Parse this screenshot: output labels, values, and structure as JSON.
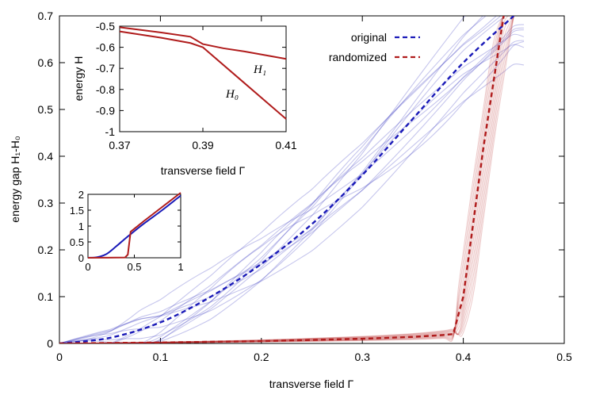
{
  "chart_data": [
    {
      "type": "line",
      "xlabel": "transverse field Γ",
      "ylabel": "energy gap H₁-H₀",
      "xlim": [
        0,
        0.5
      ],
      "ylim": [
        0,
        0.7
      ],
      "xticks": [
        0,
        0.1,
        0.2,
        0.3,
        0.4,
        0.5
      ],
      "xtick_labels": [
        "0",
        "0.1",
        "0.2",
        "0.3",
        "0.4",
        "0.5"
      ],
      "yticks": [
        0,
        0.1,
        0.2,
        0.3,
        0.4,
        0.5,
        0.6,
        0.7
      ],
      "ytick_labels": [
        "0",
        "0.1",
        "0.2",
        "0.3",
        "0.4",
        "0.5",
        "0.6",
        "0.7"
      ],
      "legend": {
        "placement": "top-right",
        "entries": [
          "original",
          "randomized"
        ]
      },
      "series": [
        {
          "name": "original",
          "color": "#1a1ab8",
          "style": "dashed",
          "x": [
            0,
            0.05,
            0.1,
            0.15,
            0.2,
            0.25,
            0.3,
            0.35,
            0.4,
            0.45
          ],
          "y": [
            0,
            0.012,
            0.045,
            0.1,
            0.17,
            0.255,
            0.36,
            0.48,
            0.6,
            0.7
          ]
        },
        {
          "name": "randomized",
          "color": "#b01c1c",
          "style": "dashed",
          "x": [
            0,
            0.1,
            0.2,
            0.3,
            0.35,
            0.38,
            0.39,
            0.4,
            0.42,
            0.44
          ],
          "y": [
            0,
            0.002,
            0.005,
            0.01,
            0.014,
            0.018,
            0.02,
            0.1,
            0.42,
            0.7
          ]
        }
      ]
    },
    {
      "type": "line",
      "xlabel": "transverse field Γ",
      "ylabel": "energy H",
      "xlim": [
        0.37,
        0.41
      ],
      "ylim": [
        -1,
        -0.5
      ],
      "xticks": [
        0.37,
        0.39,
        0.41
      ],
      "xtick_labels": [
        "0.37",
        "0.39",
        "0.41"
      ],
      "yticks": [
        -0.5,
        -0.6,
        -0.7,
        -0.8,
        -0.9,
        -1
      ],
      "ytick_labels": [
        "-0.5",
        "-0.6",
        "-0.7",
        "-0.8",
        "-0.9",
        "-1"
      ],
      "annotations": [
        "H₁",
        "H₀"
      ],
      "series": [
        {
          "name": "H₁",
          "color": "#b01c1c",
          "x": [
            0.37,
            0.38,
            0.387,
            0.39,
            0.395,
            0.4,
            0.41
          ],
          "y": [
            -0.505,
            -0.53,
            -0.55,
            -0.585,
            -0.605,
            -0.62,
            -0.655
          ]
        },
        {
          "name": "H₀",
          "color": "#b01c1c",
          "x": [
            0.37,
            0.38,
            0.387,
            0.39,
            0.4,
            0.41
          ],
          "y": [
            -0.525,
            -0.555,
            -0.58,
            -0.6,
            -0.77,
            -0.94
          ]
        }
      ]
    },
    {
      "type": "line",
      "xlim": [
        0,
        1
      ],
      "ylim": [
        0,
        2
      ],
      "xticks": [
        0,
        0.5,
        1
      ],
      "xtick_labels": [
        "0",
        "0.5",
        "1"
      ],
      "yticks": [
        0,
        0.5,
        1,
        1.5,
        2
      ],
      "ytick_labels": [
        "0",
        "0.5",
        "1",
        "1.5",
        "2"
      ],
      "series": [
        {
          "name": "original",
          "color": "#1a1ab8",
          "x": [
            0,
            0.1,
            0.2,
            0.3,
            0.4,
            0.45,
            0.6,
            0.8,
            1.0
          ],
          "y": [
            0,
            0.02,
            0.12,
            0.35,
            0.6,
            0.72,
            1.07,
            1.5,
            1.96
          ]
        },
        {
          "name": "randomized",
          "color": "#b01c1c",
          "x": [
            0,
            0.2,
            0.4,
            0.43,
            0.46,
            0.6,
            0.8,
            1.0
          ],
          "y": [
            0,
            0.003,
            0.01,
            0.1,
            0.82,
            1.15,
            1.6,
            2.05
          ]
        }
      ]
    }
  ]
}
